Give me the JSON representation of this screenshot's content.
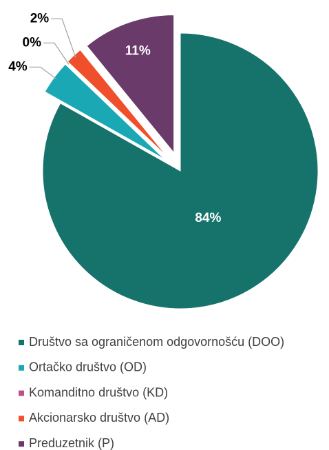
{
  "chart_data": {
    "type": "pie",
    "categories": [
      "Društvo sa ograničenom odgovornošću (DOO)",
      "Ortačko društvo (OD)",
      "Komanditno društvo (KD)",
      "Akcionarsko društvo (AD)",
      "Preduzetnik (P)"
    ],
    "values": [
      84,
      4,
      0,
      2,
      11
    ],
    "value_labels": [
      "84%",
      "4%",
      "0%",
      "2%",
      "11%"
    ],
    "colors": [
      "#16736b",
      "#1ba8b5",
      "#c0508a",
      "#ef4f2a",
      "#6a3a6a"
    ],
    "legend": "bottom"
  }
}
